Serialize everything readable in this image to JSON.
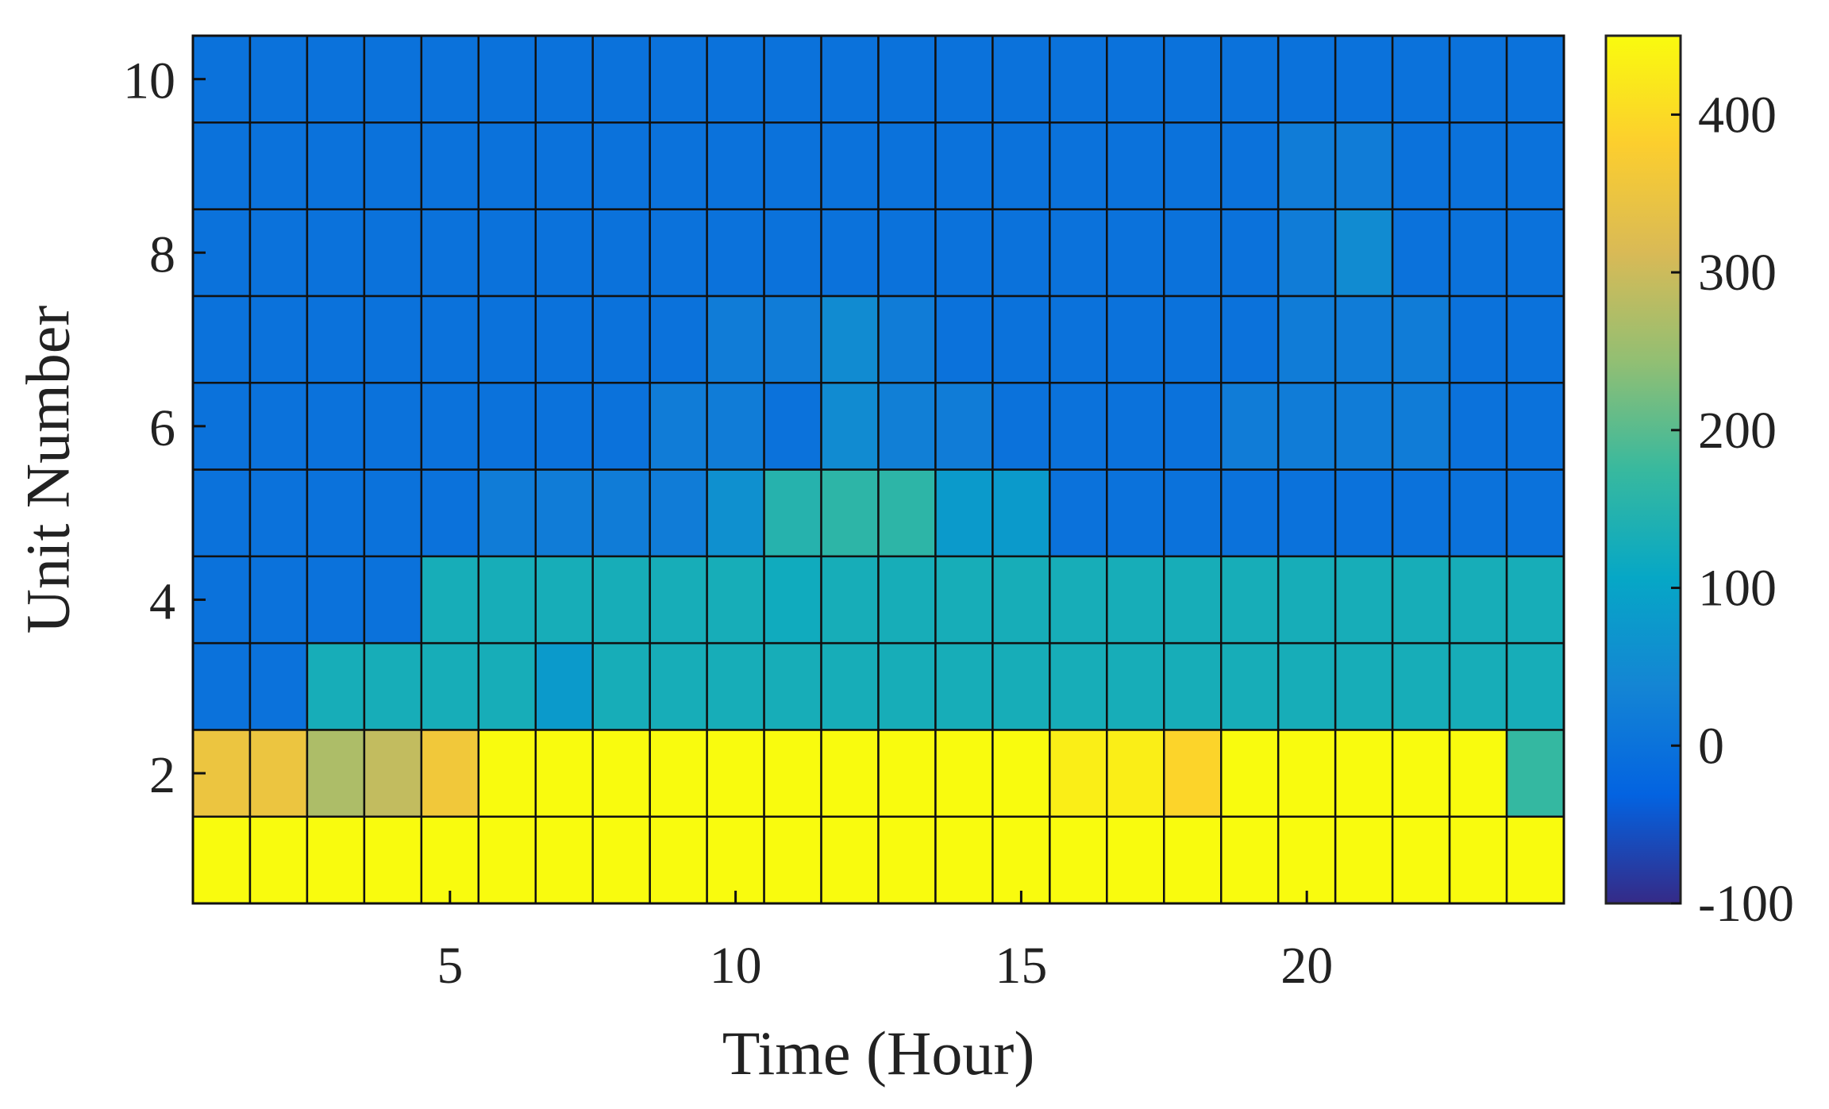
{
  "chart_data": {
    "type": "heatmap",
    "title": "",
    "xlabel": "Time (Hour)",
    "ylabel": "Unit Number",
    "x": [
      1,
      2,
      3,
      4,
      5,
      6,
      7,
      8,
      9,
      10,
      11,
      12,
      13,
      14,
      15,
      16,
      17,
      18,
      19,
      20,
      21,
      22,
      23,
      24
    ],
    "y": [
      1,
      2,
      3,
      4,
      5,
      6,
      7,
      8,
      9,
      10
    ],
    "xticks": [
      5,
      10,
      15,
      20
    ],
    "yticks": [
      2,
      4,
      6,
      8,
      10
    ],
    "xlim": [
      0.5,
      24.5
    ],
    "ylim": [
      0.5,
      10.5
    ],
    "colorbar": {
      "range": [
        -100,
        450
      ],
      "ticks": [
        -100,
        0,
        100,
        200,
        300,
        400
      ],
      "colormap": "parula"
    },
    "grid": true,
    "values": [
      [
        455,
        455,
        455,
        455,
        455,
        455,
        455,
        455,
        455,
        455,
        455,
        455,
        455,
        455,
        455,
        455,
        455,
        455,
        455,
        455,
        455,
        455,
        455,
        455
      ],
      [
        350,
        350,
        270,
        290,
        360,
        455,
        455,
        455,
        455,
        455,
        455,
        455,
        455,
        455,
        455,
        430,
        430,
        390,
        455,
        455,
        455,
        455,
        455,
        170
      ],
      [
        0,
        0,
        130,
        130,
        130,
        130,
        80,
        130,
        130,
        130,
        130,
        130,
        130,
        130,
        130,
        130,
        130,
        130,
        130,
        130,
        130,
        130,
        130,
        130
      ],
      [
        0,
        0,
        0,
        0,
        130,
        130,
        130,
        130,
        130,
        130,
        120,
        130,
        130,
        130,
        130,
        130,
        130,
        130,
        130,
        130,
        130,
        130,
        130,
        130
      ],
      [
        0,
        0,
        0,
        0,
        0,
        20,
        20,
        20,
        20,
        60,
        150,
        160,
        160,
        80,
        80,
        0,
        0,
        0,
        0,
        0,
        0,
        0,
        0,
        0
      ],
      [
        0,
        0,
        0,
        0,
        0,
        0,
        0,
        0,
        20,
        20,
        0,
        50,
        25,
        20,
        0,
        0,
        0,
        0,
        20,
        20,
        20,
        20,
        0,
        0
      ],
      [
        0,
        0,
        0,
        0,
        0,
        0,
        0,
        0,
        0,
        20,
        20,
        50,
        20,
        0,
        0,
        0,
        0,
        0,
        0,
        20,
        20,
        20,
        0,
        0
      ],
      [
        0,
        0,
        0,
        0,
        0,
        0,
        0,
        0,
        0,
        0,
        0,
        0,
        0,
        0,
        0,
        0,
        0,
        0,
        0,
        20,
        50,
        0,
        0,
        0
      ],
      [
        0,
        0,
        0,
        0,
        0,
        0,
        0,
        0,
        0,
        0,
        0,
        0,
        0,
        0,
        0,
        0,
        0,
        0,
        0,
        20,
        20,
        0,
        0,
        0
      ],
      [
        0,
        0,
        0,
        0,
        0,
        0,
        0,
        0,
        0,
        0,
        0,
        0,
        0,
        0,
        0,
        0,
        0,
        0,
        0,
        0,
        0,
        0,
        0,
        0
      ]
    ]
  }
}
